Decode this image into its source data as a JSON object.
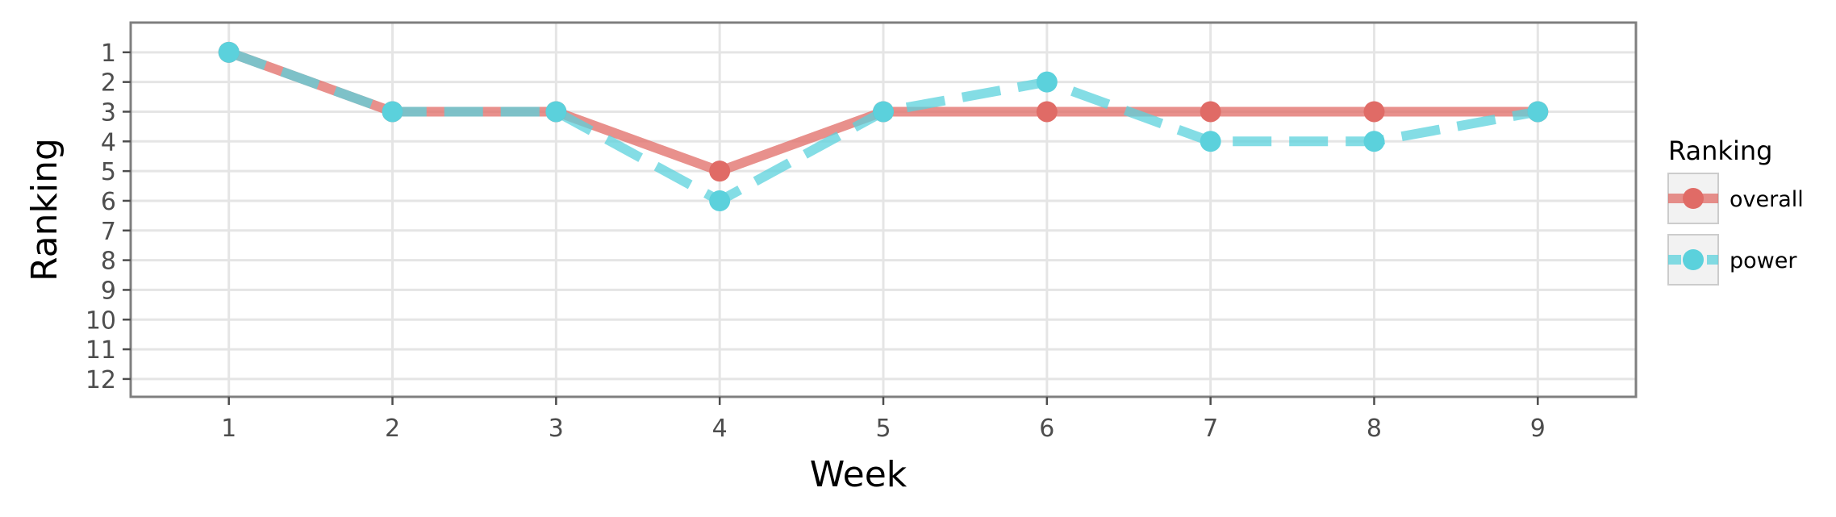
{
  "chart_data": {
    "type": "line",
    "title": "",
    "xlabel": "Week",
    "ylabel": "Ranking",
    "x": [
      1,
      2,
      3,
      4,
      5,
      6,
      7,
      8,
      9
    ],
    "x_ticks": [
      "1",
      "2",
      "3",
      "4",
      "5",
      "6",
      "7",
      "8",
      "9"
    ],
    "y_ticks": [
      "1",
      "2",
      "3",
      "4",
      "5",
      "6",
      "7",
      "8",
      "9",
      "10",
      "11",
      "12"
    ],
    "xlim": [
      0.4,
      9.6
    ],
    "ylim": [
      0.0,
      12.6
    ],
    "y_reversed": true,
    "grid": true,
    "legend": {
      "title": "Ranking",
      "position": "right"
    },
    "series": [
      {
        "name": "overall",
        "values": [
          1,
          3,
          3,
          5,
          3,
          3,
          3,
          3,
          3
        ],
        "color": "#e06b66",
        "line_style": "solid"
      },
      {
        "name": "power",
        "values": [
          1,
          3,
          3,
          6,
          3,
          2,
          4,
          4,
          3
        ],
        "color": "#5bd1dc",
        "line_style": "dashed"
      }
    ]
  }
}
